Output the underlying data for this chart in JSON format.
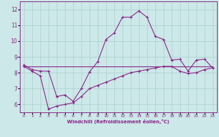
{
  "xlabel": "Windchill (Refroidissement éolien,°C)",
  "bg_color": "#cce8e8",
  "line_color": "#882288",
  "xlim": [
    -0.5,
    23.5
  ],
  "ylim": [
    5.5,
    12.5
  ],
  "yticks": [
    6,
    7,
    8,
    9,
    10,
    11,
    12
  ],
  "xticks": [
    0,
    1,
    2,
    3,
    4,
    5,
    6,
    7,
    8,
    9,
    10,
    11,
    12,
    13,
    14,
    15,
    16,
    17,
    18,
    19,
    20,
    21,
    22,
    23
  ],
  "line1_x": [
    0,
    1,
    2,
    3,
    4,
    5,
    6,
    7,
    8,
    9,
    10,
    11,
    12,
    13,
    14,
    15,
    16,
    17,
    18,
    19,
    20,
    21,
    22,
    23
  ],
  "line1_y": [
    8.5,
    8.2,
    8.1,
    8.1,
    6.5,
    6.6,
    6.2,
    7.0,
    8.05,
    8.7,
    10.1,
    10.5,
    11.5,
    11.5,
    11.9,
    11.5,
    10.3,
    10.1,
    8.8,
    8.85,
    8.1,
    8.8,
    8.85,
    8.3
  ],
  "line2_x": [
    0,
    1,
    2,
    3,
    4,
    5,
    6,
    7,
    8,
    9,
    10,
    11,
    12,
    13,
    14,
    15,
    16,
    17,
    18,
    19,
    20,
    21,
    22,
    23
  ],
  "line2_y": [
    8.4,
    8.4,
    8.4,
    8.4,
    8.4,
    8.4,
    8.4,
    8.4,
    8.4,
    8.4,
    8.4,
    8.4,
    8.4,
    8.4,
    8.4,
    8.4,
    8.4,
    8.4,
    8.4,
    8.4,
    8.4,
    8.4,
    8.4,
    8.4
  ],
  "line3_x": [
    0,
    1,
    2,
    3,
    4,
    5,
    6,
    7,
    8,
    9,
    10,
    11,
    12,
    13,
    14,
    15,
    16,
    17,
    18,
    19,
    20,
    21,
    22,
    23
  ],
  "line3_y": [
    8.4,
    8.1,
    7.8,
    5.7,
    5.9,
    6.0,
    6.1,
    6.5,
    7.0,
    7.2,
    7.4,
    7.6,
    7.8,
    8.0,
    8.1,
    8.2,
    8.3,
    8.4,
    8.4,
    8.1,
    7.95,
    8.0,
    8.2,
    8.3
  ]
}
